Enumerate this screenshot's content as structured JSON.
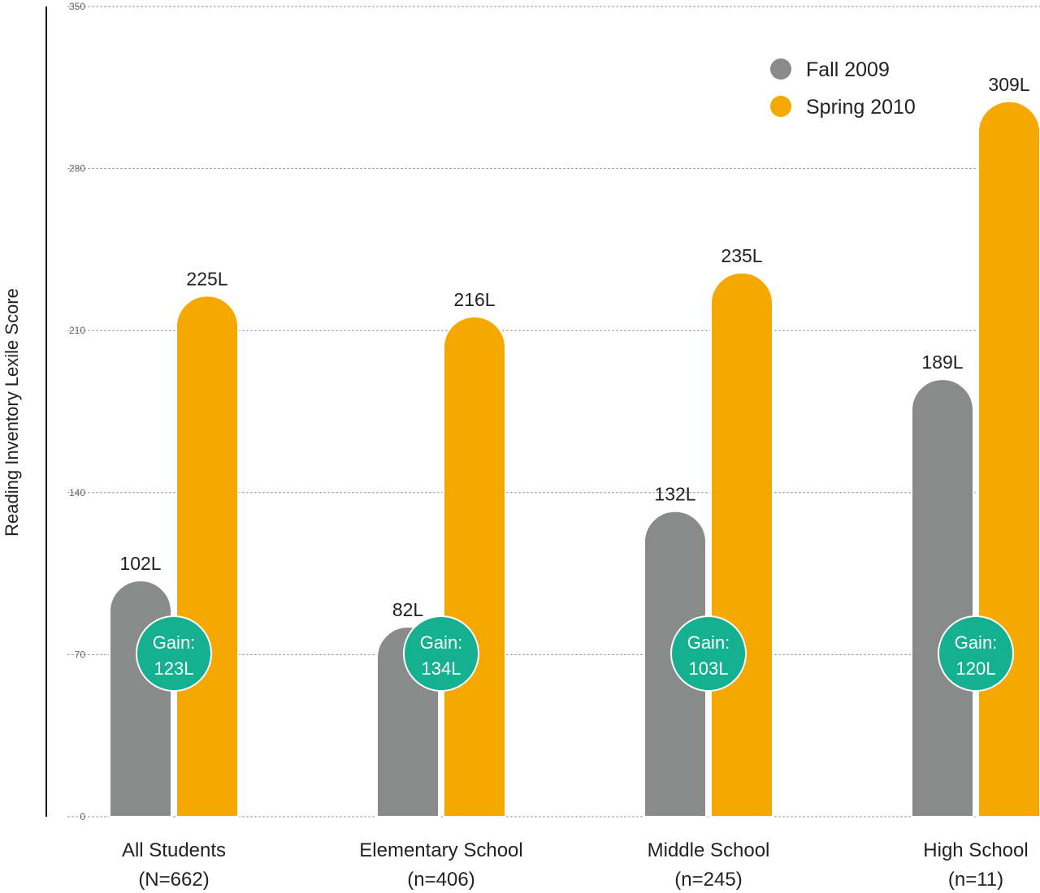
{
  "chart_data": {
    "type": "bar",
    "title": "",
    "xlabel": "",
    "ylabel": "Reading Inventory Lexile Score",
    "ylim": [
      0,
      350
    ],
    "yticks": [
      0,
      70,
      140,
      210,
      280,
      350
    ],
    "grid": true,
    "legend_position": "top-right",
    "categories": [
      {
        "name": "All Students",
        "sub": "(N=662)"
      },
      {
        "name": "Elementary School",
        "sub": "(n=406)"
      },
      {
        "name": "Middle School",
        "sub": "(n=245)"
      },
      {
        "name": "High School",
        "sub": "(n=11)"
      }
    ],
    "series": [
      {
        "name": "Fall 2009",
        "color": "#898b8b",
        "values": [
          102,
          82,
          132,
          189
        ],
        "labels": [
          "102L",
          "82L",
          "132L",
          "189L"
        ]
      },
      {
        "name": "Spring 2010",
        "color": "#f5a800",
        "values": [
          225,
          216,
          235,
          309
        ],
        "labels": [
          "225L",
          "216L",
          "235L",
          "309L"
        ]
      }
    ],
    "gains": {
      "prefix": "Gain:",
      "labels": [
        "123L",
        "134L",
        "103L",
        "120L"
      ],
      "color": "#14b08f"
    }
  }
}
